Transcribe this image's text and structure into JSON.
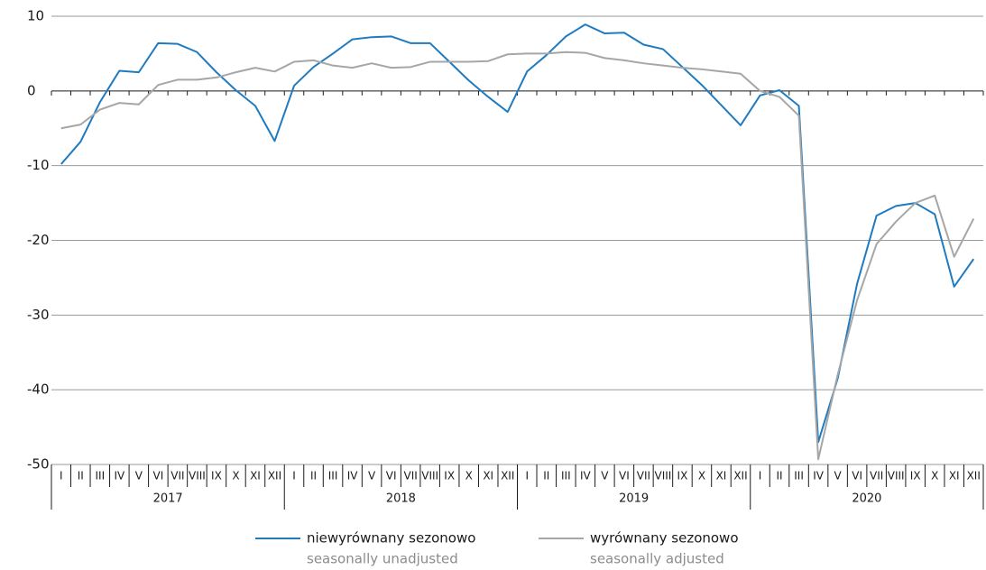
{
  "chart_data": {
    "type": "line",
    "categories": [
      "I",
      "II",
      "III",
      "IV",
      "V",
      "VI",
      "VII",
      "VIII",
      "IX",
      "X",
      "XI",
      "XII",
      "I",
      "II",
      "III",
      "IV",
      "V",
      "VI",
      "VII",
      "VIII",
      "IX",
      "X",
      "XI",
      "XII",
      "I",
      "II",
      "III",
      "IV",
      "V",
      "VI",
      "VII",
      "VIII",
      "IX",
      "X",
      "XI",
      "XII",
      "I",
      "II",
      "III",
      "IV",
      "V",
      "VI",
      "VII",
      "VIII",
      "IX",
      "X",
      "XI",
      "XII"
    ],
    "years": [
      "2017",
      "2018",
      "2019",
      "2020"
    ],
    "series": [
      {
        "name": "niewyrównany sezonowo",
        "name_en": "seasonally unadjusted",
        "color": "#1f7bc0",
        "values": [
          -9.8,
          -6.8,
          -1.5,
          2.7,
          2.5,
          6.4,
          6.3,
          5.2,
          2.5,
          0.1,
          -2.0,
          -6.7,
          0.7,
          3.2,
          5.0,
          6.9,
          7.2,
          7.3,
          6.4,
          6.4,
          3.9,
          1.4,
          -0.8,
          -2.8,
          2.6,
          4.8,
          7.3,
          8.9,
          7.7,
          7.8,
          6.2,
          5.6,
          3.2,
          0.8,
          -1.9,
          -4.6,
          -0.6,
          0.1,
          -2.0,
          -47.0,
          -38.5,
          -25.8,
          -16.7,
          -15.4,
          -15.0,
          -16.5,
          -26.2,
          -22.5
        ]
      },
      {
        "name": "wyrównany sezonowo",
        "name_en": "seasonally adjusted",
        "color": "#a6a6a6",
        "values": [
          -5.0,
          -4.5,
          -2.5,
          -1.6,
          -1.8,
          0.8,
          1.5,
          1.5,
          1.8,
          2.5,
          3.1,
          2.6,
          3.9,
          4.1,
          3.4,
          3.1,
          3.7,
          3.1,
          3.2,
          3.9,
          3.9,
          3.9,
          4.0,
          4.9,
          5.0,
          5.0,
          5.2,
          5.1,
          4.4,
          4.1,
          3.7,
          3.4,
          3.1,
          2.9,
          2.6,
          2.3,
          0.0,
          -0.8,
          -3.3,
          -49.3,
          -38.0,
          -28.0,
          -20.5,
          -17.5,
          -15.0,
          -14.0,
          -22.2,
          -17.1
        ]
      }
    ],
    "ylim": [
      -50,
      10
    ],
    "yticks": [
      10,
      0,
      -10,
      -20,
      -30,
      -40,
      -50
    ],
    "grid": true
  }
}
